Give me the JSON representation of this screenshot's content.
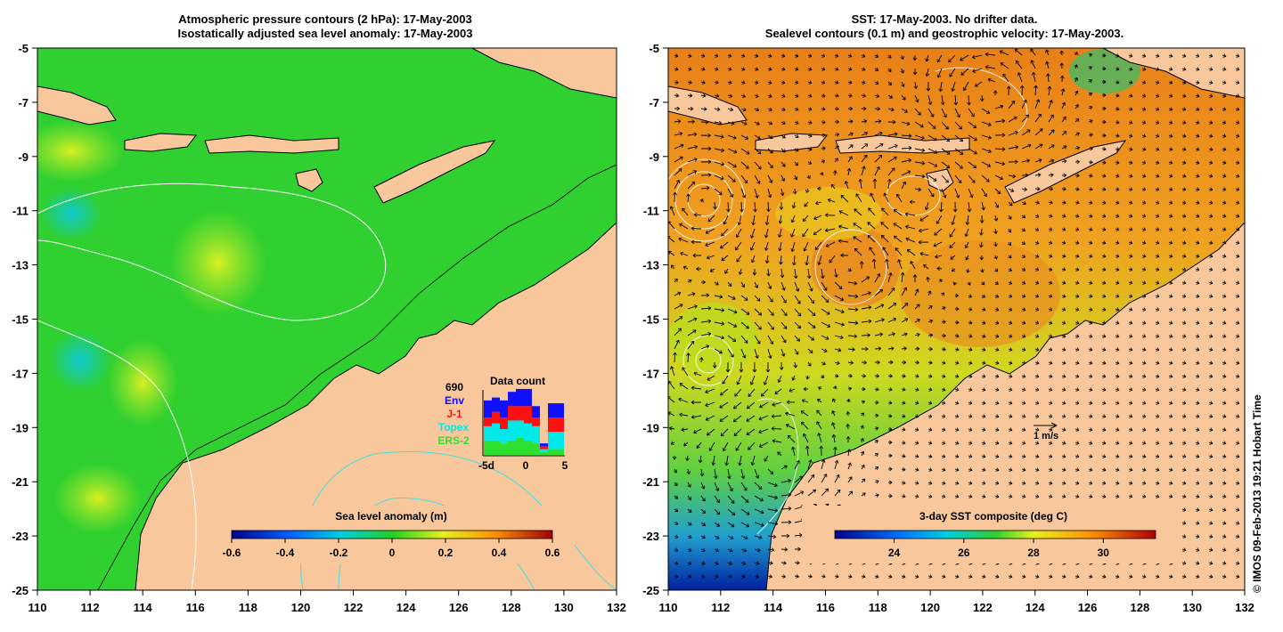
{
  "left_panel": {
    "title_line1": "Atmospheric pressure contours (2 hPa): 17-May-2003",
    "title_line2": "Isostatically adjusted sea level anomaly: 17-May-2003",
    "x_ticks": [
      "110",
      "112",
      "114",
      "116",
      "118",
      "120",
      "122",
      "124",
      "126",
      "128",
      "130",
      "132"
    ],
    "y_ticks": [
      "-5",
      "-7",
      "-9",
      "-11",
      "-13",
      "-15",
      "-17",
      "-19",
      "-21",
      "-23",
      "-25"
    ],
    "colorbar": {
      "label": "Sea level anomaly (m)",
      "ticks": [
        "-0.6",
        "-0.4",
        "-0.2",
        "0",
        "0.2",
        "0.4",
        "0.6"
      ],
      "range": [
        -0.6,
        0.6
      ]
    },
    "data_count_inset": {
      "title": "Data count",
      "max_label": "690",
      "legend": [
        {
          "name": "Env",
          "color": "#1010ff"
        },
        {
          "name": "J-1",
          "color": "#ff1010"
        },
        {
          "name": "Topex",
          "color": "#00e8e8"
        },
        {
          "name": "ERS-2",
          "color": "#30e030"
        }
      ],
      "x_ticks": [
        "-5d",
        "0",
        "5"
      ]
    }
  },
  "right_panel": {
    "title_line1": "SST: 17-May-2003. No drifter data.",
    "title_line2": "Sealevel contours (0.1 m) and geostrophic velocity: 17-May-2003.",
    "x_ticks": [
      "110",
      "112",
      "114",
      "116",
      "118",
      "120",
      "122",
      "124",
      "126",
      "128",
      "130",
      "132"
    ],
    "y_ticks": [
      "-5",
      "-7",
      "-9",
      "-11",
      "-13",
      "-15",
      "-17",
      "-19",
      "-21",
      "-23",
      "-25"
    ],
    "colorbar": {
      "label": "3-day SST composite (deg C)",
      "ticks": [
        "24",
        "26",
        "28",
        "30"
      ]
    },
    "velocity_scale_label": "1 m/s"
  },
  "credit": "© IMOS 09-Feb-2013 19:21 Hobart Time",
  "colors": {
    "land": "#f8c89c",
    "ocean_left": "#2fd02f",
    "ocean_right": "#f0a020"
  }
}
